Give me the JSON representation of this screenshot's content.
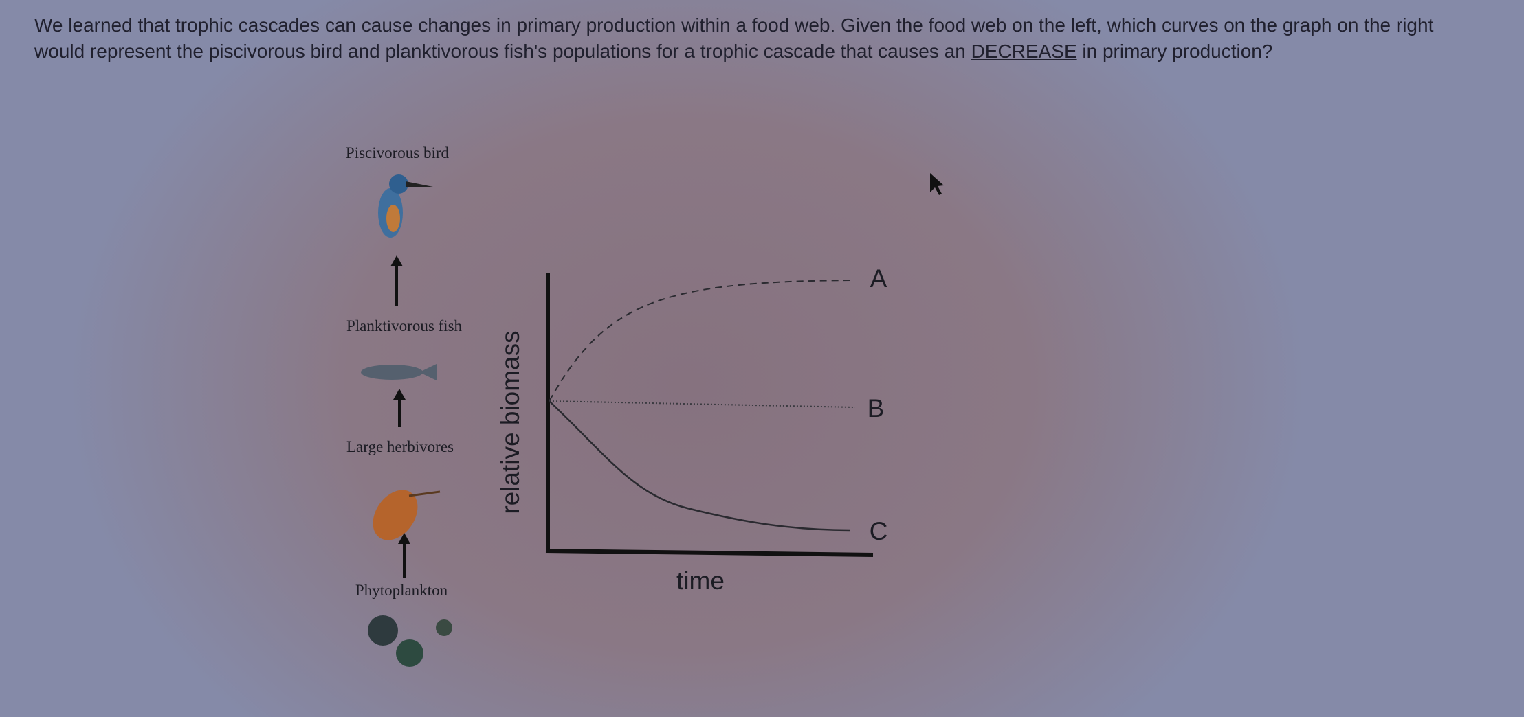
{
  "question": {
    "text_before": "We learned that trophic cascades can cause changes in primary production within a food web. Given the food web on the left, which curves on the graph on the right would represent the piscivorous bird and planktivorous fish's populations for a trophic cascade that causes an",
    "emphasis": "DECREASE",
    "text_after": "in primary production?"
  },
  "food_web": {
    "levels": [
      "Piscivorous bird",
      "Planktivorous fish",
      "Large herbivores",
      "Phytoplankton"
    ]
  },
  "graph": {
    "y_label": "relative biomass",
    "x_label": "time",
    "curves": [
      "A",
      "B",
      "C"
    ]
  }
}
